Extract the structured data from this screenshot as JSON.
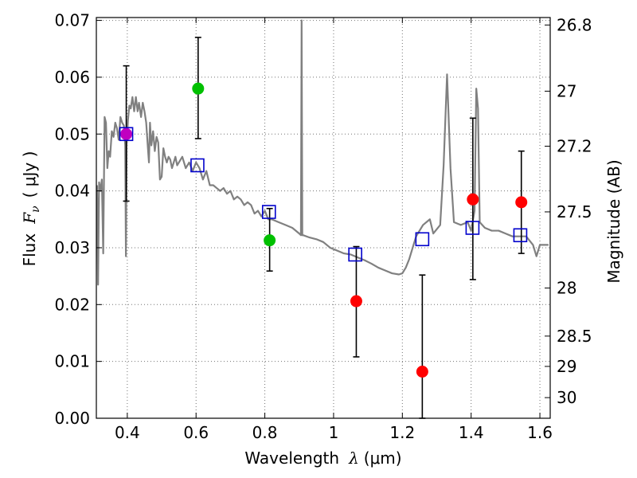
{
  "chart_data": {
    "type": "scatter",
    "xlabel_prefix": "Wavelength",
    "xlabel_symbol": "λ",
    "xlabel_unit": "(μm)",
    "ylabel_prefix": "Flux",
    "ylabel_symbol": "F",
    "ylabel_sub": "ν",
    "ylabel_unit": "( μJy )",
    "y2label": "Magnitude (AB)",
    "xlim": [
      0.31,
      1.63
    ],
    "ylim": [
      0.0,
      0.0705
    ],
    "x_ticks": [
      0.4,
      0.6,
      0.8,
      1.0,
      1.2,
      1.4,
      1.6
    ],
    "x_tick_labels": [
      "0.4",
      "0.6",
      "0.8",
      "1",
      "1.2",
      "1.4",
      "1.6"
    ],
    "y_ticks": [
      0.0,
      0.01,
      0.02,
      0.03,
      0.04,
      0.05,
      0.06,
      0.07
    ],
    "y_tick_labels": [
      "0.00",
      "0.01",
      "0.02",
      "0.03",
      "0.04",
      "0.05",
      "0.06",
      "0.07"
    ],
    "mag_ticks": [
      26.8,
      27,
      27.2,
      27.5,
      28,
      28.5,
      29,
      30
    ],
    "mag_tick_labels": [
      "26.8",
      "27",
      "27.2",
      "27.5",
      "28",
      "28.5",
      "29",
      "30"
    ],
    "grid": true,
    "colors": {
      "model": "#808080",
      "optical": "#00c000",
      "nir": "#ff0000",
      "uv": "#c000c0",
      "square": "#0000cc",
      "errorbar": "#000000"
    },
    "series": [
      {
        "name": "model SED",
        "kind": "line",
        "points": [
          [
            0.312,
            0.041
          ],
          [
            0.315,
            0.0235
          ],
          [
            0.318,
            0.0415
          ],
          [
            0.322,
            0.04
          ],
          [
            0.326,
            0.042
          ],
          [
            0.33,
            0.029
          ],
          [
            0.334,
            0.053
          ],
          [
            0.338,
            0.052
          ],
          [
            0.342,
            0.044
          ],
          [
            0.346,
            0.047
          ],
          [
            0.35,
            0.046
          ],
          [
            0.355,
            0.0505
          ],
          [
            0.36,
            0.0495
          ],
          [
            0.365,
            0.052
          ],
          [
            0.37,
            0.051
          ],
          [
            0.375,
            0.049
          ],
          [
            0.38,
            0.053
          ],
          [
            0.385,
            0.052
          ],
          [
            0.39,
            0.0515
          ],
          [
            0.394,
            0.048
          ],
          [
            0.396,
            0.0285
          ],
          [
            0.398,
            0.048
          ],
          [
            0.402,
            0.0525
          ],
          [
            0.406,
            0.055
          ],
          [
            0.41,
            0.0545
          ],
          [
            0.415,
            0.0565
          ],
          [
            0.42,
            0.054
          ],
          [
            0.425,
            0.0565
          ],
          [
            0.43,
            0.054
          ],
          [
            0.434,
            0.0555
          ],
          [
            0.44,
            0.053
          ],
          [
            0.445,
            0.0555
          ],
          [
            0.45,
            0.054
          ],
          [
            0.455,
            0.052
          ],
          [
            0.46,
            0.0475
          ],
          [
            0.463,
            0.045
          ],
          [
            0.466,
            0.052
          ],
          [
            0.47,
            0.048
          ],
          [
            0.475,
            0.0505
          ],
          [
            0.48,
            0.047
          ],
          [
            0.485,
            0.0495
          ],
          [
            0.49,
            0.0485
          ],
          [
            0.495,
            0.042
          ],
          [
            0.5,
            0.0425
          ],
          [
            0.505,
            0.0475
          ],
          [
            0.51,
            0.046
          ],
          [
            0.515,
            0.045
          ],
          [
            0.52,
            0.046
          ],
          [
            0.525,
            0.0455
          ],
          [
            0.53,
            0.044
          ],
          [
            0.535,
            0.045
          ],
          [
            0.54,
            0.046
          ],
          [
            0.545,
            0.0445
          ],
          [
            0.55,
            0.045
          ],
          [
            0.56,
            0.046
          ],
          [
            0.57,
            0.044
          ],
          [
            0.58,
            0.045
          ],
          [
            0.59,
            0.0435
          ],
          [
            0.6,
            0.045
          ],
          [
            0.61,
            0.044
          ],
          [
            0.62,
            0.042
          ],
          [
            0.63,
            0.0435
          ],
          [
            0.64,
            0.041
          ],
          [
            0.65,
            0.041
          ],
          [
            0.66,
            0.0405
          ],
          [
            0.67,
            0.04
          ],
          [
            0.68,
            0.0405
          ],
          [
            0.69,
            0.0395
          ],
          [
            0.7,
            0.04
          ],
          [
            0.71,
            0.0385
          ],
          [
            0.72,
            0.039
          ],
          [
            0.73,
            0.0385
          ],
          [
            0.74,
            0.0375
          ],
          [
            0.75,
            0.038
          ],
          [
            0.76,
            0.0375
          ],
          [
            0.77,
            0.036
          ],
          [
            0.78,
            0.0365
          ],
          [
            0.79,
            0.0355
          ],
          [
            0.8,
            0.0365
          ],
          [
            0.81,
            0.035
          ],
          [
            0.82,
            0.035
          ],
          [
            0.84,
            0.0345
          ],
          [
            0.86,
            0.034
          ],
          [
            0.88,
            0.0335
          ],
          [
            0.9,
            0.0325
          ],
          [
            0.905,
            0.0322
          ],
          [
            0.907,
            0.07
          ],
          [
            0.909,
            0.0322
          ],
          [
            0.912,
            0.0322
          ],
          [
            0.93,
            0.0318
          ],
          [
            0.95,
            0.0315
          ],
          [
            0.97,
            0.031
          ],
          [
            0.99,
            0.03
          ],
          [
            1.01,
            0.0295
          ],
          [
            1.03,
            0.029
          ],
          [
            1.05,
            0.0288
          ],
          [
            1.07,
            0.0283
          ],
          [
            1.09,
            0.0278
          ],
          [
            1.11,
            0.0272
          ],
          [
            1.13,
            0.0265
          ],
          [
            1.15,
            0.026
          ],
          [
            1.17,
            0.0255
          ],
          [
            1.19,
            0.0253
          ],
          [
            1.2,
            0.0255
          ],
          [
            1.21,
            0.0265
          ],
          [
            1.22,
            0.028
          ],
          [
            1.23,
            0.03
          ],
          [
            1.24,
            0.032
          ],
          [
            1.26,
            0.034
          ],
          [
            1.28,
            0.035
          ],
          [
            1.29,
            0.0325
          ],
          [
            1.31,
            0.034
          ],
          [
            1.32,
            0.0445
          ],
          [
            1.33,
            0.0605
          ],
          [
            1.34,
            0.044
          ],
          [
            1.35,
            0.0345
          ],
          [
            1.37,
            0.034
          ],
          [
            1.39,
            0.0345
          ],
          [
            1.4,
            0.033
          ],
          [
            1.41,
            0.0365
          ],
          [
            1.415,
            0.058
          ],
          [
            1.42,
            0.0545
          ],
          [
            1.425,
            0.0345
          ],
          [
            1.44,
            0.0335
          ],
          [
            1.46,
            0.033
          ],
          [
            1.48,
            0.033
          ],
          [
            1.5,
            0.0325
          ],
          [
            1.52,
            0.032
          ],
          [
            1.54,
            0.032
          ],
          [
            1.56,
            0.032
          ],
          [
            1.58,
            0.0305
          ],
          [
            1.59,
            0.0285
          ],
          [
            1.6,
            0.0305
          ],
          [
            1.625,
            0.0305
          ]
        ]
      },
      {
        "name": "model photometry",
        "kind": "open-square",
        "x": [
          0.397,
          0.604,
          0.812,
          1.063,
          1.258,
          1.404,
          1.543
        ],
        "y": [
          0.05,
          0.0445,
          0.0363,
          0.0288,
          0.0315,
          0.0335,
          0.0322
        ]
      },
      {
        "name": "observed optical",
        "kind": "filled-circle",
        "x": [
          0.606,
          0.814
        ],
        "y": [
          0.058,
          0.0313
        ],
        "yerr_low": [
          0.0492,
          0.0259
        ],
        "yerr_high": [
          0.067,
          0.0369
        ]
      },
      {
        "name": "observed near-IR",
        "kind": "filled-circle",
        "x": [
          1.066,
          1.258,
          1.405,
          1.546
        ],
        "y": [
          0.0206,
          0.0082,
          0.0385,
          0.038
        ],
        "yerr_low": [
          0.0108,
          0.0,
          0.0244,
          0.029
        ],
        "yerr_high": [
          0.0302,
          0.0252,
          0.0528,
          0.047
        ]
      },
      {
        "name": "observed UV",
        "kind": "filled-circle",
        "x": [
          0.397
        ],
        "y": [
          0.05
        ],
        "yerr_low": [
          0.0382
        ],
        "yerr_high": [
          0.062
        ]
      }
    ]
  }
}
